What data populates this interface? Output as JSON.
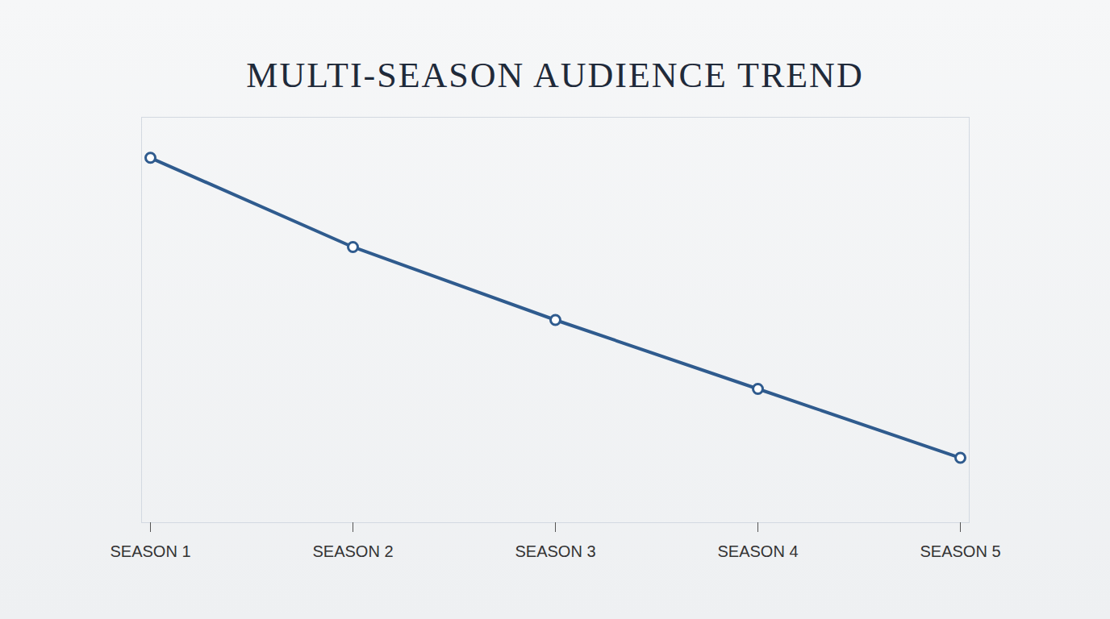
{
  "chart_data": {
    "type": "line",
    "title": "MULTI-SEASON AUDIENCE TREND",
    "categories": [
      "SEASON 1",
      "SEASON 2",
      "SEASON 3",
      "SEASON 4",
      "SEASON 5"
    ],
    "values": [
      90,
      68,
      50,
      33,
      16
    ],
    "color": "#2f5b8e",
    "marker": "circle",
    "ylim": [
      0,
      100
    ],
    "tick_labels": "x",
    "grid": false
  }
}
